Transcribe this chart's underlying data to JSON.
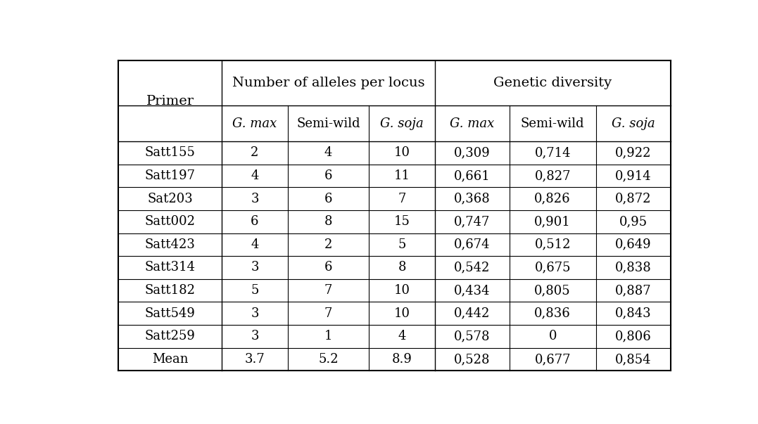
{
  "primers": [
    "Satt155",
    "Satt197",
    "Sat203",
    "Satt002",
    "Satt423",
    "Satt314",
    "Satt182",
    "Satt549",
    "Satt259",
    "Mean"
  ],
  "alleles_gmax": [
    "2",
    "4",
    "3",
    "6",
    "4",
    "3",
    "5",
    "3",
    "3",
    "3.7"
  ],
  "alleles_semiwild": [
    "4",
    "6",
    "6",
    "8",
    "2",
    "6",
    "7",
    "7",
    "1",
    "5.2"
  ],
  "alleles_gsoja": [
    "10",
    "11",
    "7",
    "15",
    "5",
    "8",
    "10",
    "10",
    "4",
    "8.9"
  ],
  "div_gmax": [
    "0,309",
    "0,661",
    "0,368",
    "0,747",
    "0,674",
    "0,542",
    "0,434",
    "0,442",
    "0,578",
    "0,528"
  ],
  "div_semiwild": [
    "0,714",
    "0,827",
    "0,826",
    "0,901",
    "0,512",
    "0,675",
    "0,805",
    "0,836",
    "0",
    "0,677"
  ],
  "div_gsoja": [
    "0,922",
    "0,914",
    "0,872",
    "0,95",
    "0,649",
    "0,838",
    "0,887",
    "0,843",
    "0,806",
    "0,854"
  ],
  "header1_left": "Number of alleles per locus",
  "header1_right": "Genetic diversity",
  "header2": [
    "G. max",
    "Semi-wild",
    "G. soja",
    "G. max",
    "Semi-wild",
    "G. soja"
  ],
  "col_primer": "Primer",
  "background_color": "#ffffff",
  "text_color": "#000000",
  "font_size": 13,
  "header_font_size": 14,
  "figsize": [
    10.77,
    6.03
  ],
  "dpi": 100
}
